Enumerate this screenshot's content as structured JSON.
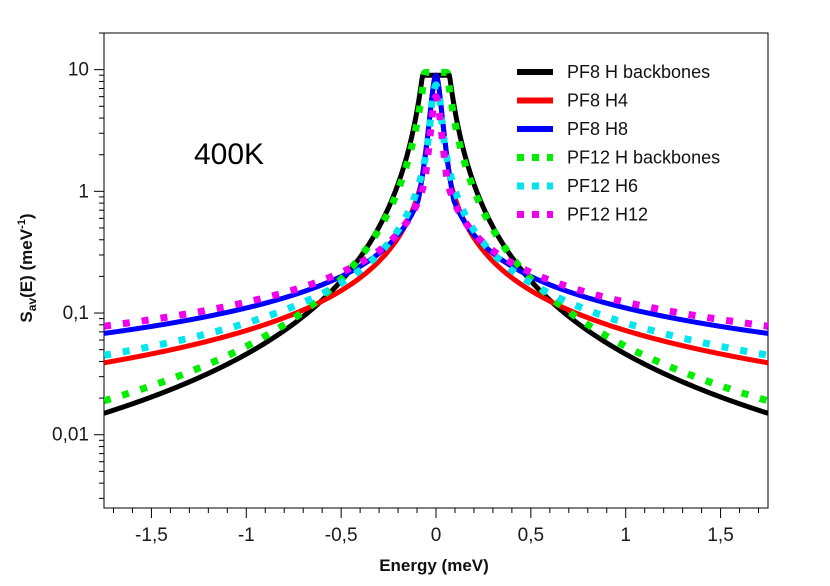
{
  "chart_data": {
    "type": "line",
    "title": "",
    "annotation": "400K",
    "xlabel": "Energy (meV)",
    "ylabel_main": "S",
    "ylabel_sub": "av",
    "ylabel_rest": "(E)  (meV",
    "ylabel_sup": "-1",
    "ylabel_end": ")",
    "xlim": [
      -1.75,
      1.75
    ],
    "ylim": [
      0.0025,
      20
    ],
    "yscale": "log",
    "x_ticks": [
      {
        "value": -1.5,
        "label": "-1,5"
      },
      {
        "value": -1,
        "label": "-1"
      },
      {
        "value": -0.5,
        "label": "-0,5"
      },
      {
        "value": 0,
        "label": "0"
      },
      {
        "value": 0.5,
        "label": "0,5"
      },
      {
        "value": 1,
        "label": "1"
      },
      {
        "value": 1.5,
        "label": "1,5"
      }
    ],
    "y_ticks": [
      {
        "value": 10,
        "label": "10"
      },
      {
        "value": 1,
        "label": "1"
      },
      {
        "value": 0.1,
        "label": "0,1"
      },
      {
        "value": 0.01,
        "label": "0,01"
      }
    ],
    "grid": false,
    "legend_position": "top-right",
    "series": [
      {
        "name": "PF8 H backbones",
        "color": "#000000",
        "style": "solid",
        "peak": 9.0,
        "a": 0.03,
        "b": 2.0,
        "tail_value_at_1_75": 0.015
      },
      {
        "name": "PF8 H4",
        "color": "#ff0000",
        "style": "solid",
        "peak": 9.0,
        "a": 0.03,
        "b": 1.09,
        "tail_value_at_1_75": 0.039
      },
      {
        "name": "PF8 H8",
        "color": "#0000ff",
        "style": "solid",
        "peak": 9.0,
        "a": 0.03,
        "b": 0.86,
        "tail_value_at_1_75": 0.068
      },
      {
        "name": "PF12 H backbones",
        "color": "#00ee00",
        "style": "dotted",
        "peak": 9.5,
        "a": 0.03,
        "b": 1.84,
        "tail_value_at_1_75": 0.019
      },
      {
        "name": "PF12 H6",
        "color": "#00e5ee",
        "style": "dotted",
        "peak": 7.5,
        "a": 0.03,
        "b": 1.09,
        "tail_value_at_1_75": 0.045
      },
      {
        "name": "PF12 H12",
        "color": "#ee00ee",
        "style": "dotted",
        "peak": 6.0,
        "a": 0.03,
        "b": 0.81,
        "tail_value_at_1_75": 0.078
      }
    ]
  }
}
